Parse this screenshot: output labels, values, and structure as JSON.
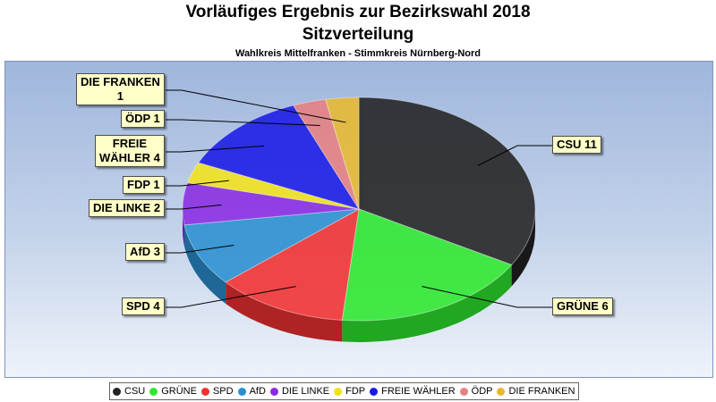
{
  "chart_data": {
    "type": "pie",
    "title": "Vorläufiges Ergebnis zur Bezirkswahl 2018",
    "subtitle": "Sitzverteilung",
    "caption": "Wahlkreis Mittelfranken - Stimmkreis Nürnberg-Nord",
    "slices": [
      {
        "name": "CSU",
        "value": 11,
        "color": "#222222",
        "label": "CSU 11"
      },
      {
        "name": "GRÜNE",
        "value": 6,
        "color": "#2ee82e",
        "label": "GRÜNE 6"
      },
      {
        "name": "SPD",
        "value": 4,
        "color": "#f23030",
        "label": "SPD 4"
      },
      {
        "name": "AfD",
        "value": 3,
        "color": "#2a8fd0",
        "label": "AfD 3"
      },
      {
        "name": "DIE LINKE",
        "value": 2,
        "color": "#8a2be2",
        "label": "DIE LINKE 2"
      },
      {
        "name": "FDP",
        "value": 1,
        "color": "#f2e21c",
        "label": "FDP 1"
      },
      {
        "name": "FREIE WÄHLER",
        "value": 4,
        "color": "#1a1ae6",
        "label": "FREIE\nWÄHLER 4"
      },
      {
        "name": "ÖDP",
        "value": 1,
        "color": "#e68080",
        "label": "ÖDP 1"
      },
      {
        "name": "DIE FRANKEN",
        "value": 1,
        "color": "#e8b830",
        "label": "DIE FRANKEN\n1"
      }
    ],
    "legend_position": "bottom"
  }
}
